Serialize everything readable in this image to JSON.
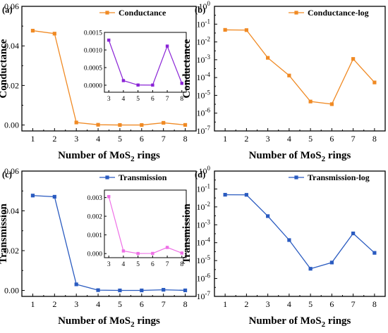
{
  "colors": {
    "conductance": "#F08A24",
    "conductance_inset": "#8A24D6",
    "transmission": "#2A5BC0",
    "transmission_inset": "#EE6FE6"
  },
  "chart_data": [
    {
      "panel": "(a)",
      "type": "line",
      "x": [
        1,
        2,
        3,
        4,
        5,
        6,
        7,
        8
      ],
      "series": [
        {
          "name": "Conductance",
          "values": [
            0.0477,
            0.0462,
            0.00128,
            0.00013,
            4.5e-06,
            3.2e-06,
            0.00111,
            5.3e-05
          ]
        }
      ],
      "xlabel_main": "Number of MoS",
      "xlabel_sub": "2",
      "xlabel_tail": " rings",
      "ylabel": "Conductance",
      "xlim": [
        0.5,
        8.5
      ],
      "ylim": [
        -0.003,
        0.06
      ],
      "xticks": [
        "1",
        "2",
        "3",
        "4",
        "5",
        "6",
        "7",
        "8"
      ],
      "yticks": [
        {
          "v": 0.0,
          "label": "0.00"
        },
        {
          "v": 0.02,
          "label": "0.02"
        },
        {
          "v": 0.04,
          "label": "0.04"
        },
        {
          "v": 0.06,
          "label": "0.06"
        }
      ],
      "legend": "top-right",
      "inset": {
        "x": [
          3,
          4,
          5,
          6,
          7,
          8
        ],
        "values": [
          0.00128,
          0.00013,
          4.5e-06,
          3.2e-06,
          0.00111,
          5.3e-05
        ],
        "xlim": [
          2.7,
          8.3
        ],
        "ylim": [
          -0.0002,
          0.0015
        ],
        "xticks": [
          "3",
          "4",
          "5",
          "6",
          "7",
          "8"
        ],
        "yticks": [
          {
            "v": 0.0,
            "label": "0.0000"
          },
          {
            "v": 0.0005,
            "label": "0.0005"
          },
          {
            "v": 0.001,
            "label": "0.0010"
          },
          {
            "v": 0.0015,
            "label": "0.0015"
          }
        ]
      }
    },
    {
      "panel": "(b)",
      "type": "line",
      "yscale": "log",
      "x": [
        1,
        2,
        3,
        4,
        5,
        6,
        7,
        8
      ],
      "series": [
        {
          "name": "Conductance-log",
          "values": [
            0.0477,
            0.0462,
            0.00128,
            0.00013,
            4.5e-06,
            3.2e-06,
            0.00111,
            5.3e-05
          ]
        }
      ],
      "xlabel_main": "Number of MoS",
      "xlabel_sub": "2",
      "xlabel_tail": " rings",
      "ylabel": "Conductance",
      "xlim": [
        0.5,
        8.5
      ],
      "ylim_exp": [
        -7,
        0
      ],
      "xticks": [
        "1",
        "2",
        "3",
        "4",
        "5",
        "6",
        "7",
        "8"
      ],
      "yticks": [
        {
          "e": 0,
          "base": "10",
          "exp": "0"
        },
        {
          "e": -1,
          "base": "10",
          "exp": "-1"
        },
        {
          "e": -2,
          "base": "10",
          "exp": "-2"
        },
        {
          "e": -3,
          "base": "10",
          "exp": "-3"
        },
        {
          "e": -4,
          "base": "10",
          "exp": "-4"
        },
        {
          "e": -5,
          "base": "10",
          "exp": "-5"
        },
        {
          "e": -6,
          "base": "10",
          "exp": "-6"
        },
        {
          "e": -7,
          "base": "10",
          "exp": "-7"
        }
      ],
      "legend": "top-right"
    },
    {
      "panel": "(c)",
      "type": "line",
      "x": [
        1,
        2,
        3,
        4,
        5,
        6,
        7,
        8
      ],
      "series": [
        {
          "name": "Transmission",
          "values": [
            0.0477,
            0.0471,
            0.00305,
            0.00014,
            3.5e-06,
            7.8e-06,
            0.00033,
            2.7e-05
          ]
        }
      ],
      "xlabel_main": "Number of MoS",
      "xlabel_sub": "2",
      "xlabel_tail": " rings",
      "ylabel": "Transmission",
      "xlim": [
        0.5,
        8.5
      ],
      "ylim": [
        -0.003,
        0.06
      ],
      "xticks": [
        "1",
        "2",
        "3",
        "4",
        "5",
        "6",
        "7",
        "8"
      ],
      "yticks": [
        {
          "v": 0.0,
          "label": "0.00"
        },
        {
          "v": 0.02,
          "label": "0.02"
        },
        {
          "v": 0.04,
          "label": "0.04"
        },
        {
          "v": 0.06,
          "label": "0.06"
        }
      ],
      "legend": "top-right",
      "inset": {
        "x": [
          3,
          4,
          5,
          6,
          7,
          8
        ],
        "values": [
          0.00305,
          0.00014,
          3.5e-06,
          7.8e-06,
          0.00033,
          2.7e-05
        ],
        "xlim": [
          2.7,
          8.3
        ],
        "ylim": [
          -0.00022,
          0.0034
        ],
        "xticks": [
          "3",
          "4",
          "5",
          "6",
          "7",
          "8"
        ],
        "yticks": [
          {
            "v": 0.0,
            "label": "0.000"
          },
          {
            "v": 0.001,
            "label": "0.001"
          },
          {
            "v": 0.002,
            "label": "0.002"
          },
          {
            "v": 0.003,
            "label": "0.003"
          }
        ]
      }
    },
    {
      "panel": "(d)",
      "type": "line",
      "yscale": "log",
      "x": [
        1,
        2,
        3,
        4,
        5,
        6,
        7,
        8
      ],
      "series": [
        {
          "name": "Transmission-log",
          "values": [
            0.0477,
            0.0471,
            0.00305,
            0.00014,
            3.5e-06,
            7.8e-06,
            0.00033,
            2.7e-05
          ]
        }
      ],
      "xlabel_main": "Number of MoS",
      "xlabel_sub": "2",
      "xlabel_tail": " rings",
      "ylabel": "Transmission",
      "xlim": [
        0.5,
        8.5
      ],
      "ylim_exp": [
        -7,
        0
      ],
      "xticks": [
        "1",
        "2",
        "3",
        "4",
        "5",
        "6",
        "7",
        "8"
      ],
      "yticks": [
        {
          "e": 0,
          "base": "10",
          "exp": "0"
        },
        {
          "e": -1,
          "base": "10",
          "exp": "-1"
        },
        {
          "e": -2,
          "base": "10",
          "exp": "-2"
        },
        {
          "e": -3,
          "base": "10",
          "exp": "-3"
        },
        {
          "e": -4,
          "base": "10",
          "exp": "-4"
        },
        {
          "e": -5,
          "base": "10",
          "exp": "-5"
        },
        {
          "e": -6,
          "base": "10",
          "exp": "-6"
        },
        {
          "e": -7,
          "base": "10",
          "exp": "-7"
        }
      ],
      "legend": "top-right"
    }
  ]
}
